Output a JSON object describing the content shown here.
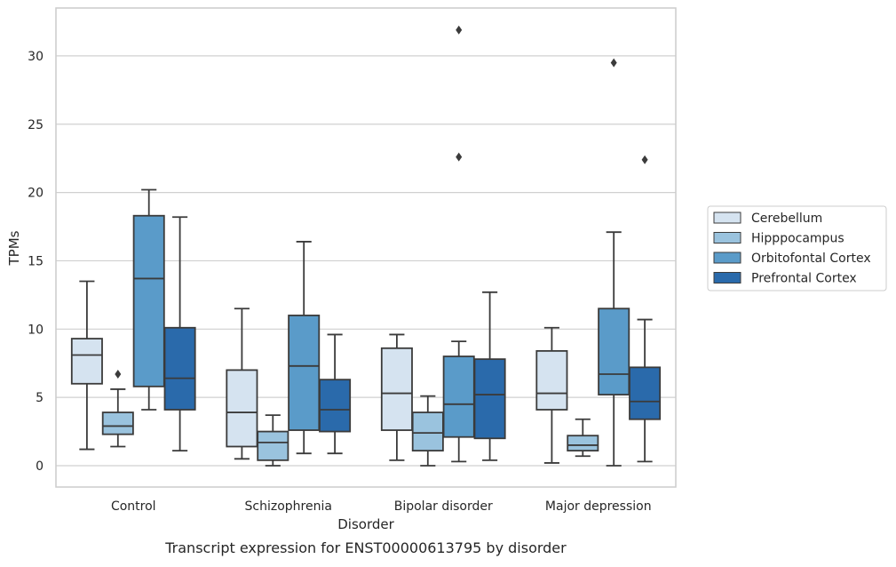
{
  "chart_data": {
    "type": "box",
    "title": "",
    "caption": "Transcript expression for ENST00000613795 by disorder",
    "xlabel": "Disorder",
    "ylabel": "TPMs",
    "ylim": [
      -1.5,
      33.5
    ],
    "yticks": [
      0,
      5,
      10,
      15,
      20,
      25,
      30
    ],
    "grid": true,
    "legend_position": "right",
    "categories": [
      "Control",
      "Schizophrenia",
      "Bipolar disorder",
      "Major depression"
    ],
    "series": [
      {
        "name": "Cerebellum",
        "color": "#d5e3f0",
        "boxes": [
          {
            "whisker_low": 1.2,
            "q1": 6.0,
            "median": 8.1,
            "q3": 9.3,
            "whisker_high": 13.5,
            "outliers": []
          },
          {
            "whisker_low": 0.5,
            "q1": 1.4,
            "median": 3.9,
            "q3": 7.0,
            "whisker_high": 11.5,
            "outliers": []
          },
          {
            "whisker_low": 0.4,
            "q1": 2.6,
            "median": 5.3,
            "q3": 8.6,
            "whisker_high": 9.6,
            "outliers": []
          },
          {
            "whisker_low": 0.2,
            "q1": 4.1,
            "median": 5.3,
            "q3": 8.4,
            "whisker_high": 10.1,
            "outliers": []
          }
        ]
      },
      {
        "name": "Hipppocampus",
        "color": "#9ac3de",
        "boxes": [
          {
            "whisker_low": 1.4,
            "q1": 2.3,
            "median": 2.9,
            "q3": 3.9,
            "whisker_high": 5.6,
            "outliers": [
              6.7
            ]
          },
          {
            "whisker_low": 0.0,
            "q1": 0.4,
            "median": 1.7,
            "q3": 2.5,
            "whisker_high": 3.7,
            "outliers": []
          },
          {
            "whisker_low": 0.0,
            "q1": 1.1,
            "median": 2.4,
            "q3": 3.9,
            "whisker_high": 5.1,
            "outliers": []
          },
          {
            "whisker_low": 0.7,
            "q1": 1.1,
            "median": 1.5,
            "q3": 2.2,
            "whisker_high": 3.4,
            "outliers": []
          }
        ]
      },
      {
        "name": "Orbitofontal Cortex",
        "color": "#5a9bc9",
        "boxes": [
          {
            "whisker_low": 4.1,
            "q1": 5.8,
            "median": 13.7,
            "q3": 18.3,
            "whisker_high": 20.2,
            "outliers": []
          },
          {
            "whisker_low": 0.9,
            "q1": 2.6,
            "median": 7.3,
            "q3": 11.0,
            "whisker_high": 16.4,
            "outliers": []
          },
          {
            "whisker_low": 0.3,
            "q1": 2.1,
            "median": 4.5,
            "q3": 8.0,
            "whisker_high": 9.1,
            "outliers": [
              22.6,
              31.9
            ]
          },
          {
            "whisker_low": 0.0,
            "q1": 5.2,
            "median": 6.7,
            "q3": 11.5,
            "whisker_high": 17.1,
            "outliers": [
              29.5
            ]
          }
        ]
      },
      {
        "name": "Prefrontal Cortex",
        "color": "#2a6aab",
        "boxes": [
          {
            "whisker_low": 1.1,
            "q1": 4.1,
            "median": 6.4,
            "q3": 10.1,
            "whisker_high": 18.2,
            "outliers": []
          },
          {
            "whisker_low": 0.9,
            "q1": 2.5,
            "median": 4.1,
            "q3": 6.3,
            "whisker_high": 9.6,
            "outliers": []
          },
          {
            "whisker_low": 0.4,
            "q1": 2.0,
            "median": 5.2,
            "q3": 7.8,
            "whisker_high": 12.7,
            "outliers": []
          },
          {
            "whisker_low": 0.3,
            "q1": 3.4,
            "median": 4.7,
            "q3": 7.2,
            "whisker_high": 10.7,
            "outliers": [
              22.4
            ]
          }
        ]
      }
    ]
  }
}
